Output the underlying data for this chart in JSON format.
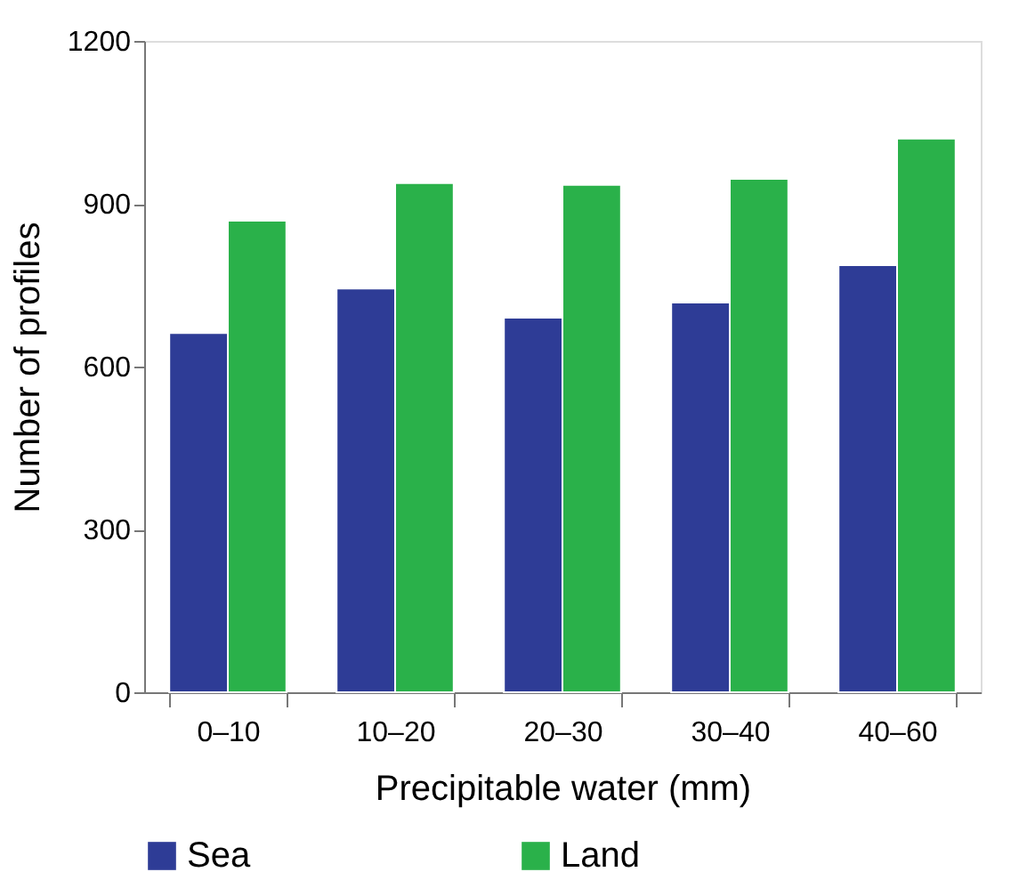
{
  "chart_data": {
    "type": "bar",
    "xlabel": "Precipitable water (mm)",
    "ylabel": "Number of profiles",
    "categories": [
      "0–10",
      "10–20",
      "20–30",
      "30–40",
      "40–60"
    ],
    "series": [
      {
        "name": "Sea",
        "color": "#2e3c96",
        "values": [
          662,
          744,
          690,
          718,
          787
        ]
      },
      {
        "name": "Land",
        "color": "#2ab14a",
        "values": [
          869,
          938,
          935,
          946,
          1020
        ]
      }
    ],
    "ylim": [
      0,
      1200
    ],
    "yticks": [
      0,
      300,
      600,
      900,
      1200
    ],
    "grid": false,
    "legend": "bottom"
  }
}
